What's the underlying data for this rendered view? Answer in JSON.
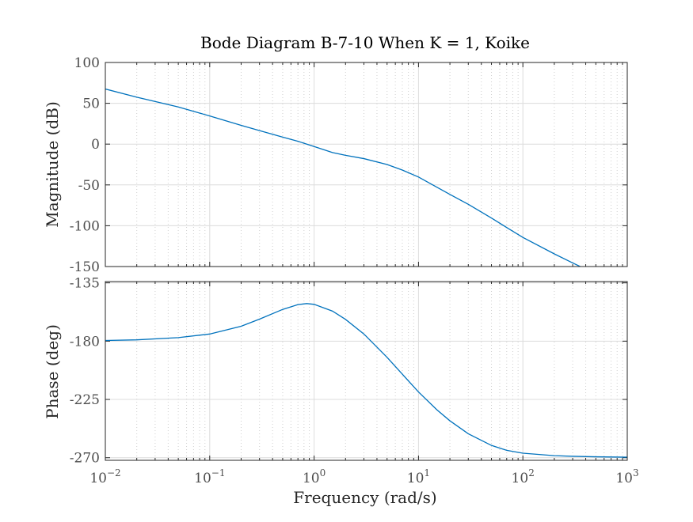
{
  "chart_data": {
    "type": "line",
    "title": "Bode Diagram B-7-10 When K = 1, Koike",
    "xlabel": "Frequency (rad/s)",
    "xscale": "log",
    "xlim": [
      0.01,
      1000
    ],
    "x_tick_labels": [
      {
        "value": 0.01,
        "base": "10",
        "exp": "−2"
      },
      {
        "value": 0.1,
        "base": "10",
        "exp": "−1"
      },
      {
        "value": 1,
        "base": "10",
        "exp": "0"
      },
      {
        "value": 10,
        "base": "10",
        "exp": "1"
      },
      {
        "value": 100,
        "base": "10",
        "exp": "2"
      },
      {
        "value": 1000,
        "base": "10",
        "exp": "3"
      }
    ],
    "grid": true,
    "line_color": "#0072bd",
    "panels": [
      {
        "name": "magnitude",
        "ylabel": "Magnitude (dB)",
        "ylim": [
          -150,
          100
        ],
        "y_ticks": [
          100,
          50,
          0,
          -50,
          -100,
          -150
        ],
        "y_tick_labels": [
          "100",
          "50",
          "0",
          "-50",
          "-100",
          "-150"
        ],
        "series": [
          {
            "x": [
              0.01,
              0.02,
              0.05,
              0.1,
              0.2,
              0.3,
              0.5,
              0.7,
              1,
              1.5,
              2,
              3,
              5,
              7,
              10,
              15,
              20,
              30,
              50,
              70,
              100,
              200,
              300,
              500,
              650
            ],
            "y": [
              67.5,
              57.5,
              45.5,
              34.5,
              23,
              16.5,
              8.5,
              3.5,
              -3,
              -10.3,
              -13.7,
              -17.8,
              -25,
              -31.8,
              -40.3,
              -52.8,
              -61.6,
              -73.8,
              -90.6,
              -102.2,
              -114.3,
              -134.5,
              -145.6,
              -159.1,
              -166
            ]
          }
        ]
      },
      {
        "name": "phase",
        "ylabel": "Phase (deg)",
        "ylim": [
          -272,
          -134
        ],
        "y_ticks": [
          -135,
          -180,
          -225,
          -270
        ],
        "y_tick_labels": [
          "-135",
          "-180",
          "-225",
          "-270"
        ],
        "series": [
          {
            "x": [
              0.01,
              0.02,
              0.05,
              0.1,
              0.2,
              0.3,
              0.5,
              0.7,
              0.85,
              1,
              1.5,
              2,
              3,
              5,
              7,
              10,
              15,
              20,
              30,
              50,
              70,
              100,
              200,
              300,
              500,
              1000
            ],
            "y": [
              -179.5,
              -179,
              -177.3,
              -174.5,
              -168.5,
              -163,
              -155.5,
              -151.8,
              -151,
              -151.6,
              -156.8,
              -163.2,
              -174.5,
              -192.5,
              -205.5,
              -219.2,
              -233,
              -241.5,
              -251.5,
              -260.5,
              -264.3,
              -266.5,
              -268.4,
              -268.9,
              -269.3,
              -269.6
            ]
          }
        ]
      }
    ]
  }
}
